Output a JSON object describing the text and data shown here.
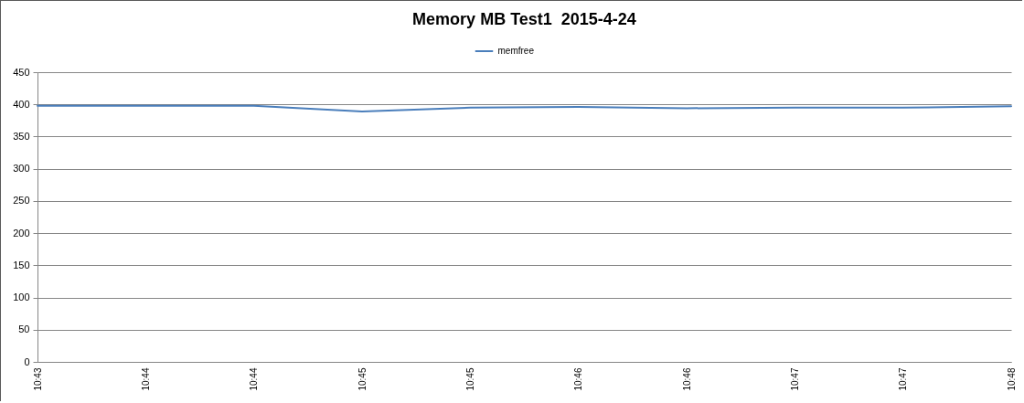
{
  "chart_data": {
    "type": "line",
    "title": "Memory MB Test1  2015-4-24",
    "categories": [
      "10:43",
      "10:44",
      "10:44",
      "10:45",
      "10:45",
      "10:46",
      "10:46",
      "10:47",
      "10:47",
      "10:48"
    ],
    "series": [
      {
        "name": "memfree",
        "color": "#4a7ebb",
        "values": [
          398,
          398,
          398,
          389,
          395,
          396,
          394,
          395,
          395,
          397
        ]
      }
    ],
    "ylim": [
      0,
      450
    ],
    "yticks": [
      0,
      50,
      100,
      150,
      200,
      250,
      300,
      350,
      400,
      450
    ],
    "grid": "y",
    "legend": "top"
  }
}
